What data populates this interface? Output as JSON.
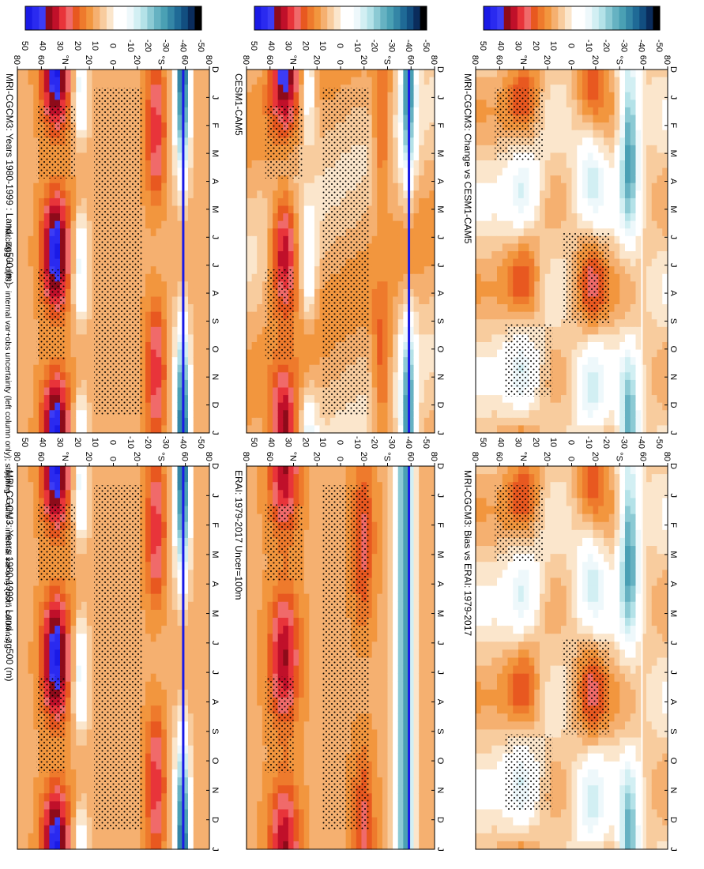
{
  "chart_data": {
    "type": "heatmap",
    "orientation": "rotated-90-clockwise",
    "layout": "3x2",
    "footnote": "hatching = diffs > internal var+obs uncertainty (left column only); stippling = diffs > internal var only (both columns)",
    "month_ticks": [
      "D",
      "J",
      "F",
      "M",
      "A",
      "M",
      "J",
      "J",
      "A",
      "S",
      "O",
      "N",
      "D",
      "J"
    ],
    "lat_ticks": [
      "80",
      "60",
      "°N",
      "20",
      "0",
      "20",
      "°S",
      "60",
      "80"
    ],
    "colorbar": {
      "labels": [
        "50",
        "40",
        "30",
        "20",
        "10",
        "0",
        "-10",
        "-20",
        "-30",
        "-40",
        "-50"
      ],
      "colors": [
        "#1a1ae6",
        "#2a2af0",
        "#3c3cf5",
        "#8e0b1a",
        "#c0102a",
        "#e8343a",
        "#f06a6a",
        "#e85820",
        "#ee7a2c",
        "#f2963e",
        "#f5b070",
        "#f8cc9e",
        "#fbe6cc",
        "#ffffff",
        "#ffffff",
        "#eef8fb",
        "#d2eff3",
        "#b4e2e8",
        "#8ccad4",
        "#66b2c2",
        "#4aa0b4",
        "#3486a6",
        "#1f6a96",
        "#124e80",
        "#0a2c5c",
        "#000000"
      ]
    },
    "panels": [
      {
        "id": "p1",
        "title": "MRI-CGCM3: Years 1980-1999 : Land : zg500 (m)",
        "kind": "clim"
      },
      {
        "id": "p2",
        "title": "MRI-CGCM3: Years 1980-1999 : Land : zg500 (m)",
        "kind": "clim"
      },
      {
        "id": "p3",
        "title": "ERAI: 1979-2017 Uncer=100m",
        "kind": "obs"
      },
      {
        "id": "p4",
        "title": "CESM1-CAM5",
        "kind": "clim2"
      },
      {
        "id": "p5",
        "title": "MRI-CGCM3: Bias vs ERAI: 1979-2017",
        "kind": "diff"
      },
      {
        "id": "p6",
        "title": "MRI-CGCM3: Change vs CESM1-CAM5",
        "kind": "diff"
      }
    ]
  }
}
